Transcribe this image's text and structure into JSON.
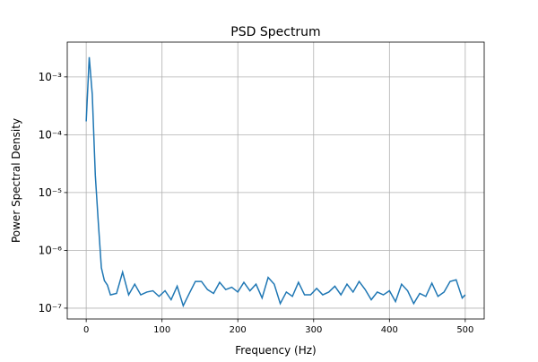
{
  "chart_data": {
    "type": "line",
    "title": "PSD Spectrum",
    "x_label": "Frequency (Hz)",
    "y_label": "Power Spectral Density",
    "x": [
      0,
      4,
      8,
      12,
      16,
      20,
      24,
      28,
      32,
      40,
      48,
      56,
      64,
      72,
      80,
      88,
      96,
      104,
      112,
      120,
      128,
      136,
      144,
      152,
      160,
      168,
      176,
      184,
      192,
      200,
      208,
      216,
      224,
      232,
      240,
      248,
      256,
      264,
      272,
      280,
      288,
      296,
      304,
      312,
      320,
      328,
      336,
      344,
      352,
      360,
      368,
      376,
      384,
      392,
      400,
      408,
      416,
      424,
      432,
      440,
      448,
      456,
      464,
      472,
      480,
      488,
      496,
      500
    ],
    "series": [
      {
        "name": "PSD",
        "color": "#1f77b4",
        "values": [
          0.00017,
          0.0022,
          0.0005,
          2e-05,
          3e-06,
          5e-07,
          3e-07,
          2.5e-07,
          1.7e-07,
          1.8e-07,
          4.2e-07,
          1.7e-07,
          2.6e-07,
          1.7e-07,
          1.9e-07,
          2e-07,
          1.6e-07,
          2e-07,
          1.4e-07,
          2.4e-07,
          1.1e-07,
          1.8e-07,
          2.9e-07,
          2.9e-07,
          2.1e-07,
          1.8e-07,
          2.8e-07,
          2.1e-07,
          2.3e-07,
          1.9e-07,
          2.8e-07,
          2e-07,
          2.6e-07,
          1.5e-07,
          3.4e-07,
          2.6e-07,
          1.2e-07,
          1.9e-07,
          1.6e-07,
          2.8e-07,
          1.7e-07,
          1.7e-07,
          2.2e-07,
          1.7e-07,
          1.9e-07,
          2.4e-07,
          1.7e-07,
          2.6e-07,
          1.9e-07,
          2.9e-07,
          2.1e-07,
          1.4e-07,
          1.9e-07,
          1.7e-07,
          2e-07,
          1.3e-07,
          2.6e-07,
          2e-07,
          1.2e-07,
          1.8e-07,
          1.6e-07,
          2.7e-07,
          1.6e-07,
          1.9e-07,
          2.9e-07,
          3.1e-07,
          1.5e-07,
          1.7e-07
        ]
      }
    ],
    "xlim": [
      -25,
      525
    ],
    "xticks": [
      0,
      100,
      200,
      300,
      400,
      500
    ],
    "ylim": [
      6.5e-08,
      0.004
    ],
    "ylog": true,
    "yticks": [
      {
        "value": 1e-07,
        "label": "10⁻⁷"
      },
      {
        "value": 1e-06,
        "label": "10⁻⁶"
      },
      {
        "value": 1e-05,
        "label": "10⁻⁵"
      },
      {
        "value": 0.0001,
        "label": "10⁻⁴"
      },
      {
        "value": 0.001,
        "label": "10⁻³"
      }
    ],
    "grid": true
  }
}
